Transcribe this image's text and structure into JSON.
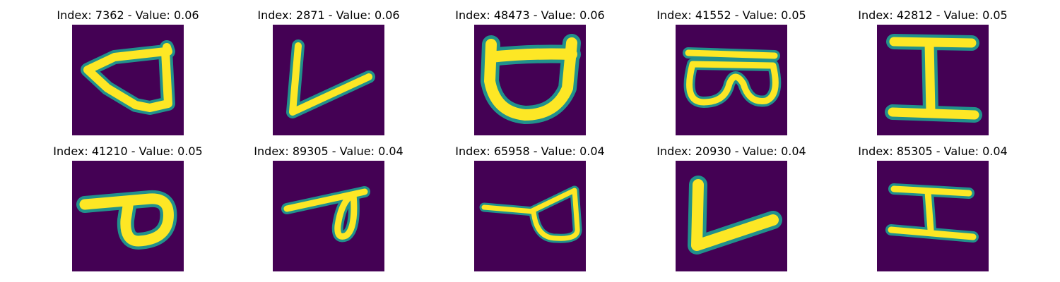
{
  "colors": {
    "background": "#440154",
    "stroke_edge": "#21918c",
    "stroke_core": "#fde725"
  },
  "panels": [
    {
      "title": "Index: 7362 - Value: 0.06",
      "glyph_icon": "handwritten-d-rotated-glyph"
    },
    {
      "title": "Index: 2871 - Value: 0.06",
      "glyph_icon": "handwritten-v-glyph"
    },
    {
      "title": "Index: 48473 - Value: 0.06",
      "glyph_icon": "handwritten-cup-glyph"
    },
    {
      "title": "Index: 41552 - Value: 0.05",
      "glyph_icon": "handwritten-goggles-glyph"
    },
    {
      "title": "Index: 42812 - Value: 0.05",
      "glyph_icon": "handwritten-i-glyph"
    },
    {
      "title": "Index: 41210 - Value: 0.05",
      "glyph_icon": "handwritten-p-rotated-glyph"
    },
    {
      "title": "Index: 89305 - Value: 0.04",
      "glyph_icon": "handwritten-loop-glyph"
    },
    {
      "title": "Index: 65958 - Value: 0.04",
      "glyph_icon": "handwritten-d-rotated-glyph"
    },
    {
      "title": "Index: 20930 - Value: 0.04",
      "glyph_icon": "handwritten-v-glyph"
    },
    {
      "title": "Index: 85305 - Value: 0.04",
      "glyph_icon": "handwritten-i-rotated-glyph"
    }
  ]
}
